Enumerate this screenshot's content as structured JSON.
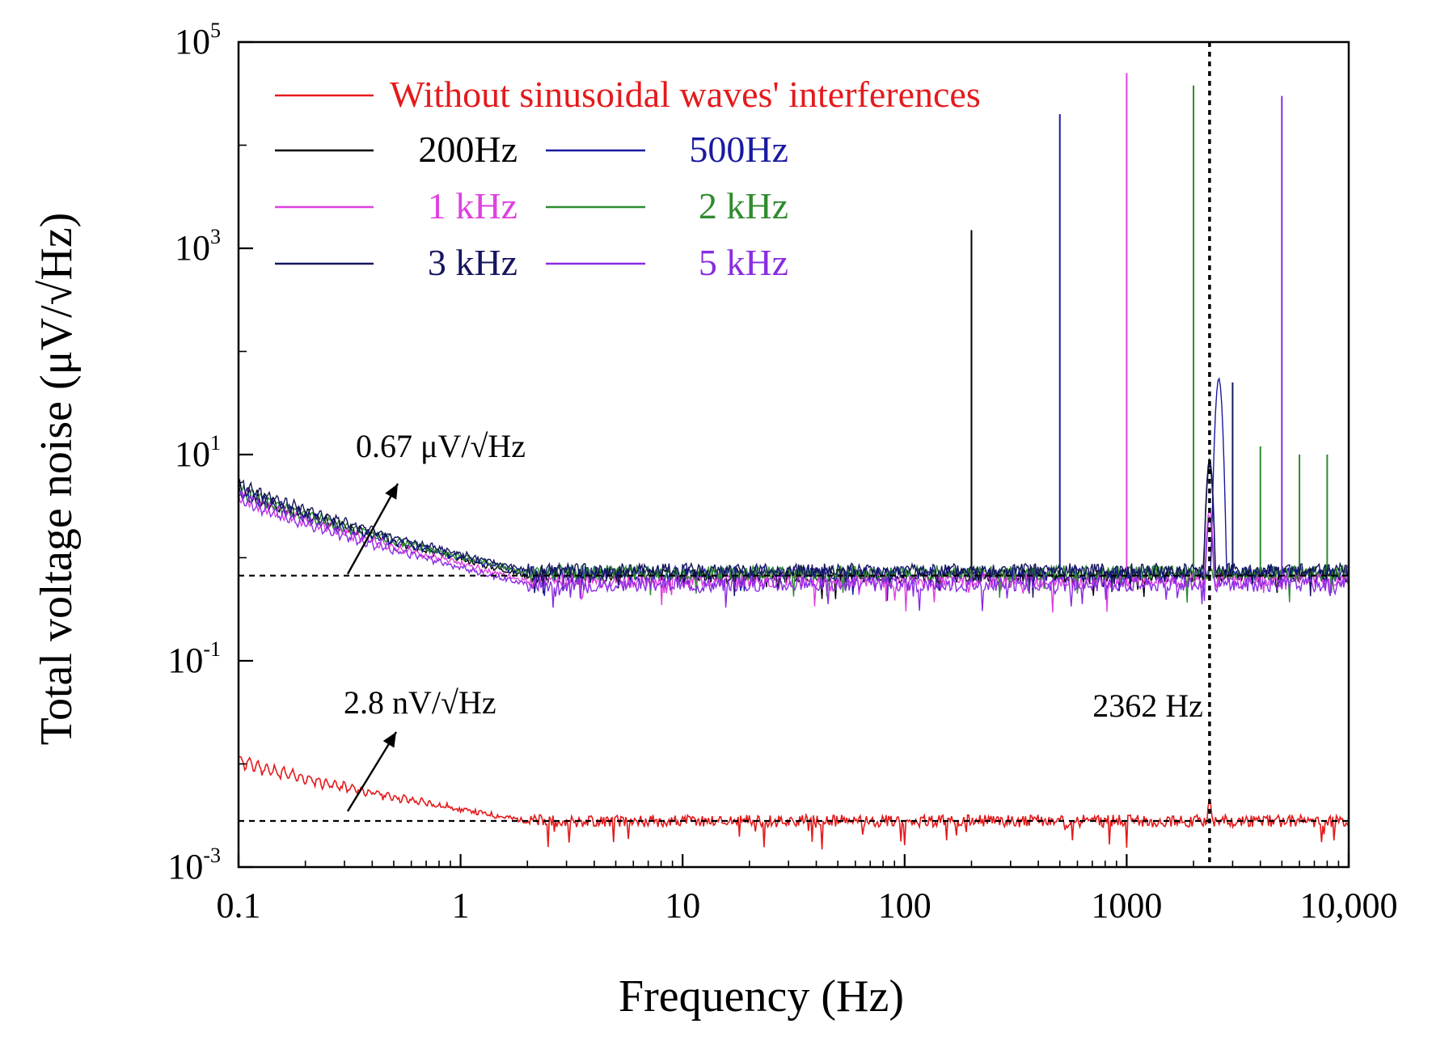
{
  "chart_data": {
    "type": "line",
    "title": "",
    "xlabel": "Frequency (Hz)",
    "ylabel": "Total voltage noise (μV/√Hz)",
    "xscale": "log",
    "yscale": "log",
    "xlim": [
      0.1,
      10000
    ],
    "ylim": [
      0.001,
      100000
    ],
    "x_ticks": [
      {
        "value": 0.1,
        "label": "0.1"
      },
      {
        "value": 1,
        "label": "1"
      },
      {
        "value": 10,
        "label": "10"
      },
      {
        "value": 100,
        "label": "100"
      },
      {
        "value": 1000,
        "label": "1000"
      },
      {
        "value": 10000,
        "label": "10,000"
      }
    ],
    "y_ticks": [
      {
        "value": 0.001,
        "base": "10",
        "exp": "-3"
      },
      {
        "value": 0.1,
        "base": "10",
        "exp": "-1"
      },
      {
        "value": 10,
        "base": "10",
        "exp": "1"
      },
      {
        "value": 1000,
        "base": "10",
        "exp": "3"
      },
      {
        "value": 100000,
        "base": "10",
        "exp": "5"
      }
    ],
    "legend_position": "top-left",
    "series": [
      {
        "name": "Without sinusoidal waves' interferences",
        "color": "#e41a1c",
        "baseline": 0.0028,
        "low_freq_value": 0.011,
        "peaks": [
          {
            "x": 2362,
            "y": 0.0045
          }
        ],
        "seed": 11
      },
      {
        "name": "200Hz",
        "color": "#000000",
        "baseline": 0.67,
        "low_freq_value": 4.8,
        "peaks": [
          {
            "x": 200,
            "y": 1500
          },
          {
            "x": 2362,
            "y": 8
          }
        ],
        "seed": 3
      },
      {
        "name": "500Hz",
        "color": "#1a1aa0",
        "baseline": 0.7,
        "low_freq_value": 4.5,
        "peaks": [
          {
            "x": 500,
            "y": 20000
          },
          {
            "x": 2600,
            "y": 55
          }
        ],
        "seed": 5
      },
      {
        "name": "1 kHz",
        "color": "#e040e0",
        "baseline": 0.6,
        "low_freq_value": 4.2,
        "peaks": [
          {
            "x": 1000,
            "y": 50000
          },
          {
            "x": 2362,
            "y": 3
          }
        ],
        "seed": 7
      },
      {
        "name": "2 kHz",
        "color": "#2e8b2e",
        "baseline": 0.72,
        "low_freq_value": 4.6,
        "peaks": [
          {
            "x": 2000,
            "y": 38000
          },
          {
            "x": 4000,
            "y": 12
          },
          {
            "x": 6000,
            "y": 10
          },
          {
            "x": 8000,
            "y": 10
          }
        ],
        "seed": 9
      },
      {
        "name": "3 kHz",
        "color": "#151560",
        "baseline": 0.75,
        "low_freq_value": 5.2,
        "peaks": [
          {
            "x": 3000,
            "y": 50
          },
          {
            "x": 2362,
            "y": 9
          }
        ],
        "seed": 13
      },
      {
        "name": "5 kHz",
        "color": "#8a2be2",
        "baseline": 0.55,
        "low_freq_value": 4.0,
        "peaks": [
          {
            "x": 5000,
            "y": 30000
          },
          {
            "x": 2362,
            "y": 2.5
          }
        ],
        "seed": 17
      }
    ],
    "reference_lines": [
      {
        "orientation": "horizontal",
        "y": 0.67,
        "x_end": 10000
      },
      {
        "orientation": "horizontal",
        "y": 0.0028,
        "x_end": 10000
      },
      {
        "orientation": "vertical",
        "x": 2362
      }
    ],
    "annotations": [
      {
        "text": "0.67 μV/√Hz",
        "value": 0.67
      },
      {
        "text": "2.8 nV/√Hz",
        "value": 0.0028
      },
      {
        "text": "2362 Hz",
        "value": 2362
      }
    ]
  }
}
